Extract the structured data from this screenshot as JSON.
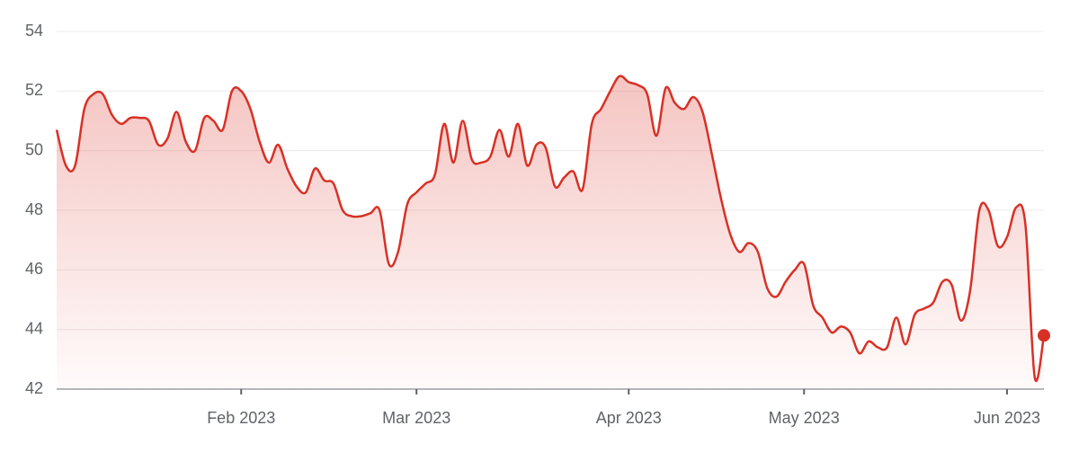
{
  "chart_data": {
    "type": "line",
    "categories": [
      null,
      null,
      null,
      null,
      null,
      null,
      null,
      null,
      null,
      null,
      null,
      null,
      null,
      null,
      null,
      null,
      null,
      null,
      null,
      null,
      "Feb 2023",
      null,
      null,
      null,
      null,
      null,
      null,
      null,
      null,
      null,
      null,
      null,
      null,
      null,
      null,
      null,
      null,
      null,
      null,
      "Mar 2023",
      null,
      null,
      null,
      null,
      null,
      null,
      null,
      null,
      null,
      null,
      null,
      null,
      null,
      null,
      null,
      null,
      null,
      null,
      null,
      null,
      null,
      null,
      "Apr 2023",
      null,
      null,
      null,
      null,
      null,
      null,
      null,
      null,
      null,
      null,
      null,
      null,
      null,
      null,
      null,
      null,
      null,
      null,
      "May 2023",
      null,
      null,
      null,
      null,
      null,
      null,
      null,
      null,
      null,
      null,
      null,
      null,
      null,
      null,
      null,
      null,
      null,
      null,
      null,
      null,
      null,
      "Jun 2023",
      null,
      null,
      null,
      null
    ],
    "series": [
      {
        "color": "#d93025",
        "values": [
          50.7,
          49.5,
          49.5,
          51.4,
          51.9,
          51.9,
          51.2,
          50.9,
          51.1,
          51.1,
          51.0,
          50.2,
          50.4,
          51.3,
          50.3,
          50.0,
          51.1,
          51.0,
          50.7,
          52.0,
          52.0,
          51.4,
          50.3,
          49.6,
          50.2,
          49.4,
          48.8,
          48.6,
          49.4,
          49.0,
          48.9,
          48.0,
          47.8,
          47.8,
          47.9,
          48.0,
          46.2,
          46.6,
          48.2,
          48.6,
          48.9,
          49.2,
          50.9,
          49.6,
          51.0,
          49.7,
          49.6,
          49.8,
          50.7,
          49.8,
          50.9,
          49.5,
          50.2,
          50.1,
          48.8,
          49.1,
          49.3,
          48.7,
          50.9,
          51.4,
          52.0,
          52.5,
          52.3,
          52.2,
          51.9,
          50.5,
          52.1,
          51.6,
          51.4,
          51.8,
          51.3,
          49.9,
          48.4,
          47.2,
          46.6,
          46.9,
          46.6,
          45.4,
          45.1,
          45.6,
          46.0,
          46.2,
          44.8,
          44.4,
          43.9,
          44.1,
          43.9,
          43.2,
          43.6,
          43.4,
          43.4,
          44.4,
          43.5,
          44.5,
          44.7,
          44.9,
          45.6,
          45.5,
          44.3,
          45.3,
          48.0,
          48.0,
          46.8,
          47.1,
          48.1,
          47.5,
          42.4,
          43.8
        ]
      }
    ],
    "ylim": [
      42,
      54
    ],
    "yticks": [
      42,
      44,
      46,
      48,
      50,
      52,
      54
    ],
    "grid": true,
    "area_fill": true,
    "end_marker": true
  }
}
